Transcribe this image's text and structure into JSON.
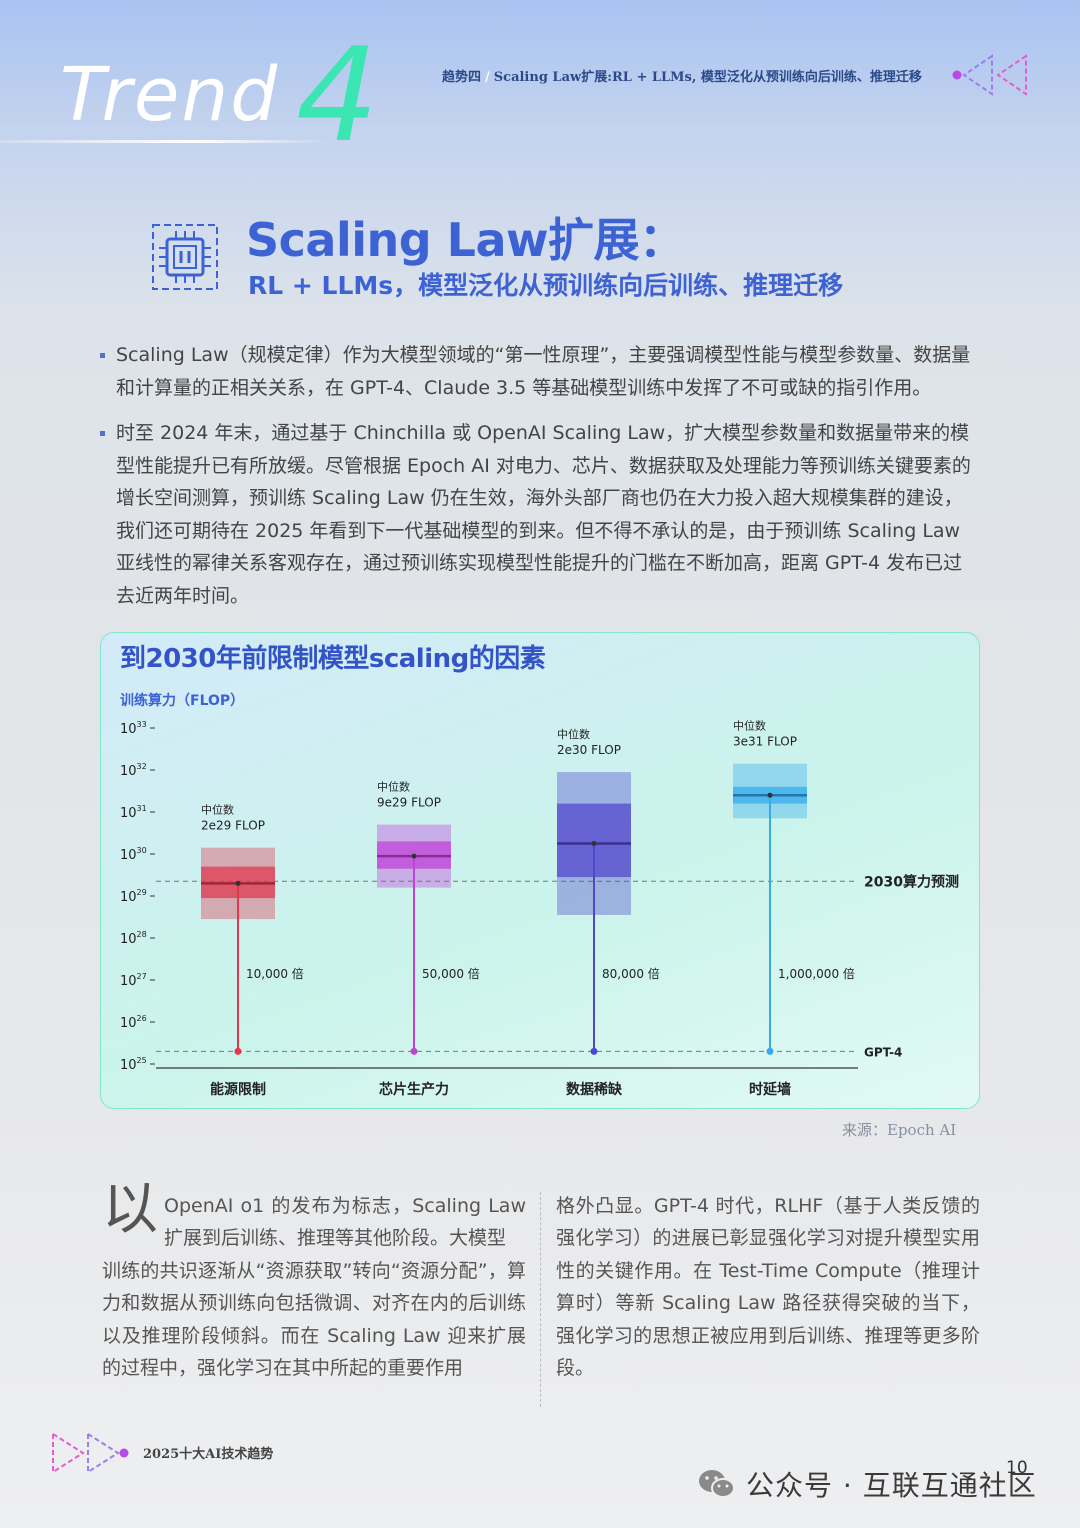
{
  "header": {
    "trend_word": "Trend",
    "trend_number": "4",
    "crumb_part": "趋势四",
    "crumb_separator": "/",
    "crumb_title": "Scaling Law扩展:RL + LLMs, 模型泛化从预训练向后训练、推理迁移",
    "accent_teal": "#3be6b3",
    "accent_magenta": "#b84be8"
  },
  "title_block": {
    "icon": "chip-icon",
    "title": "Scaling Law扩展：",
    "subtitle": "RL + LLMs，模型泛化从预训练向后训练、推理迁移",
    "title_color": "#3d62d4"
  },
  "bullets": [
    "Scaling Law（规模定律）作为大模型领域的“第一性原理”，主要强调模型性能与模型参数量、数据量和计算量的正相关关系，在 GPT-4、Claude 3.5 等基础模型训练中发挥了不可或缺的指引作用。",
    "时至 2024 年末，通过基于 Chinchilla 或 OpenAI Scaling Law，扩大模型参数量和数据量带来的模型性能提升已有所放缓。尽管根据 Epoch AI 对电力、芯片、数据获取及处理能力等预训练关键要素的增长空间测算，预训练 Scaling Law 仍在生效，海外头部厂商也仍在大力投入超大规模集群的建设，我们还可期待在 2025 年看到下一代基础模型的到来。但不得不承认的是，由于预训练 Scaling Law 亚线性的幂律关系客观存在，通过预训练实现模型性能提升的门槛在不断加高，距离 GPT-4 发布已过去近两年时间。"
  ],
  "chart_data": {
    "type": "box",
    "title": "到2030年前限制模型scaling的因素",
    "ylabel": "训练算力（FLOP）",
    "yscale": "log10",
    "ylim_exp": [
      25,
      33
    ],
    "ytick_exponents": [
      33,
      32,
      31,
      30,
      29,
      28,
      27,
      26,
      25
    ],
    "ytick_base": "10",
    "reference_lines": [
      {
        "label": "2030算力预测",
        "value_exp": 29.35
      },
      {
        "label": "GPT-4",
        "value_exp": 25.3
      }
    ],
    "categories": [
      "能源限制",
      "芯片生产力",
      "数据稀缺",
      "时延墙"
    ],
    "series": [
      {
        "category": "能源限制",
        "median_caption": "中位数",
        "median_label": "2e29 FLOP",
        "median_exp": 29.3,
        "whisker_low_exp": 28.45,
        "q1_exp": 28.95,
        "q3_exp": 29.7,
        "whisker_high_exp": 30.15,
        "multiplier": "10,000 倍",
        "color": "#e0384f"
      },
      {
        "category": "芯片生产力",
        "median_caption": "中位数",
        "median_label": "9e29 FLOP",
        "median_exp": 29.95,
        "whisker_low_exp": 29.2,
        "q1_exp": 29.65,
        "q3_exp": 30.3,
        "whisker_high_exp": 30.7,
        "multiplier": "50,000 倍",
        "color": "#c040d8"
      },
      {
        "category": "数据稀缺",
        "median_caption": "中位数",
        "median_label": "2e30 FLOP",
        "median_exp": 30.25,
        "whisker_low_exp": 28.55,
        "q1_exp": 29.45,
        "q3_exp": 31.2,
        "whisker_high_exp": 31.95,
        "multiplier": "80,000 倍",
        "color": "#5046cc"
      },
      {
        "category": "时延墙",
        "median_caption": "中位数",
        "median_label": "3e31 FLOP",
        "median_exp": 31.4,
        "whisker_low_exp": 30.85,
        "q1_exp": 31.2,
        "q3_exp": 31.6,
        "whisker_high_exp": 32.15,
        "multiplier": "1,000,000 倍",
        "color": "#35aaf0"
      }
    ]
  },
  "chart_source": "来源：Epoch AI",
  "article": {
    "dropcap": "以",
    "left_first": "OpenAI o1 的发布为标志，Scaling Law 扩展到后训练、推理等其他阶段。大模型",
    "left_rest": "训练的共识逐渐从“资源获取”转向“资源分配”，算力和数据从预训练向包括微调、对齐在内的后训练以及推理阶段倾斜。而在 Scaling Law 迎来扩展的过程中，强化学习在其中所起的重要作用",
    "right": "格外凸显。GPT-4 时代，RLHF（基于人类反馈的强化学习）的进展已彰显强化学习对提升模型实用性的关键作用。在 Test-Time Compute（推理计算时）等新 Scaling Law 路径获得突破的当下，强化学习的思想正被应用到后训练、推理等更多阶段。"
  },
  "footer": {
    "label": "2025十大AI技术趋势",
    "page_number": "10",
    "wechat_icon": "wechat-icon",
    "wechat_label": "公众号 · 互联互通社区"
  }
}
